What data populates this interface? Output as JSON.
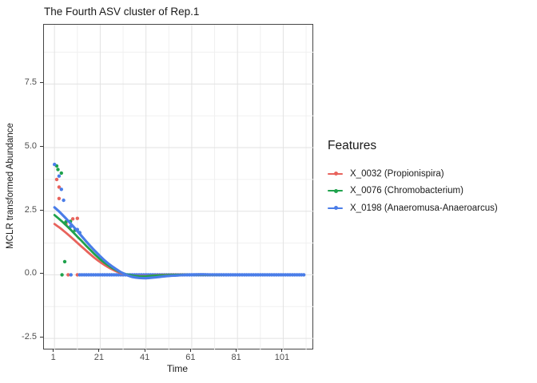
{
  "chart_data": {
    "type": "scatter+smooth",
    "title": "The Fourth ASV cluster of Rep.1",
    "xlabel": "Time",
    "ylabel": "MCLR transformed Abundance",
    "x_domain": [
      -3.6,
      114.3
    ],
    "y_domain": [
      -2.95,
      9.83
    ],
    "x_ticks": [
      {
        "v": 1,
        "label": "1"
      },
      {
        "v": 21,
        "label": "21"
      },
      {
        "v": 41,
        "label": "41"
      },
      {
        "v": 61,
        "label": "61"
      },
      {
        "v": 81,
        "label": "81"
      },
      {
        "v": 101,
        "label": "101"
      }
    ],
    "x_minor": [
      11,
      31,
      51,
      71,
      91,
      111
    ],
    "y_ticks": [
      {
        "v": 7.5,
        "label": "7.5"
      },
      {
        "v": 5.0,
        "label": "5.0"
      },
      {
        "v": 2.5,
        "label": "2.5"
      },
      {
        "v": 0.0,
        "label": "0.0"
      },
      {
        "v": -2.5,
        "label": "-2.5"
      }
    ],
    "y_minor": [
      8.75,
      6.25,
      3.75,
      1.25,
      -1.25
    ],
    "grid": {
      "major_color": "#E2E2E2",
      "minor_color": "#F0F0F0",
      "panel_border": "#454545",
      "panel_bg": "#FFFFFF"
    },
    "legend": {
      "title": "Features",
      "position": "right"
    },
    "point_radius": 2.2,
    "series": [
      {
        "label": "X_0032 (Propionispira)",
        "color": "#E8635C",
        "line_width": 2.8,
        "points": [
          [
            2,
            3.75
          ],
          [
            3,
            3.45
          ],
          [
            3,
            3.0
          ],
          [
            6,
            2.0
          ],
          [
            9,
            2.2
          ],
          [
            11,
            2.22
          ],
          [
            7,
            0
          ],
          [
            11,
            0
          ]
        ],
        "curve": [
          [
            1,
            2.0
          ],
          [
            3,
            1.87
          ],
          [
            5,
            1.73
          ],
          [
            7,
            1.58
          ],
          [
            9,
            1.42
          ],
          [
            11,
            1.26
          ],
          [
            13,
            1.1
          ],
          [
            15,
            0.94
          ],
          [
            17,
            0.78
          ],
          [
            19,
            0.63
          ],
          [
            21,
            0.5
          ],
          [
            23,
            0.38
          ],
          [
            25,
            0.27
          ],
          [
            27,
            0.18
          ],
          [
            29,
            0.1
          ],
          [
            31,
            0.04
          ],
          [
            33,
            0.0
          ],
          [
            35,
            -0.03
          ],
          [
            38,
            -0.05
          ],
          [
            41,
            -0.05
          ],
          [
            44,
            -0.03
          ],
          [
            47,
            -0.01
          ],
          [
            50,
            0
          ],
          [
            55,
            0.01
          ],
          [
            60,
            0.01
          ],
          [
            70,
            0
          ],
          [
            80,
            0
          ],
          [
            90,
            0
          ],
          [
            100,
            0
          ],
          [
            110,
            0
          ]
        ]
      },
      {
        "label": "X_0076 (Chromobacterium)",
        "color": "#1FA24C",
        "line_width": 2.8,
        "points": [
          [
            2,
            4.28
          ],
          [
            2.5,
            4.14
          ],
          [
            4,
            4.0
          ],
          [
            6,
            2.08
          ],
          [
            8,
            2.1
          ],
          [
            10,
            1.75
          ],
          [
            12,
            1.65
          ],
          [
            5.5,
            0.52
          ],
          [
            4.3,
            0
          ]
        ],
        "curve": [
          [
            1,
            2.35
          ],
          [
            3,
            2.2
          ],
          [
            5,
            2.04
          ],
          [
            7,
            1.87
          ],
          [
            9,
            1.69
          ],
          [
            11,
            1.5
          ],
          [
            13,
            1.32
          ],
          [
            15,
            1.13
          ],
          [
            17,
            0.95
          ],
          [
            19,
            0.77
          ],
          [
            21,
            0.61
          ],
          [
            23,
            0.47
          ],
          [
            25,
            0.34
          ],
          [
            27,
            0.23
          ],
          [
            29,
            0.14
          ],
          [
            31,
            0.06
          ],
          [
            33,
            0.01
          ],
          [
            35,
            -0.03
          ],
          [
            38,
            -0.06
          ],
          [
            41,
            -0.06
          ],
          [
            44,
            -0.04
          ],
          [
            47,
            -0.02
          ],
          [
            50,
            -0.01
          ],
          [
            55,
            0
          ],
          [
            60,
            0.01
          ],
          [
            70,
            0
          ],
          [
            80,
            0
          ],
          [
            90,
            0
          ],
          [
            100,
            0
          ],
          [
            110,
            0
          ]
        ]
      },
      {
        "label": "X_0198 (Anaeromusa-Anaeroarcus)",
        "color": "#4A7DE8",
        "line_width": 3.2,
        "points": [
          [
            1,
            4.34
          ],
          [
            3,
            3.88
          ],
          [
            4,
            3.36
          ],
          [
            5,
            2.93
          ],
          [
            8,
            1.9
          ],
          [
            11,
            1.78
          ],
          [
            12,
            1.66
          ],
          [
            8.2,
            0
          ]
        ],
        "zero_run": {
          "from": 12,
          "to": 110,
          "step": 1,
          "y": 0
        },
        "curve": [
          [
            1,
            2.65
          ],
          [
            3,
            2.49
          ],
          [
            5,
            2.31
          ],
          [
            7,
            2.12
          ],
          [
            9,
            1.92
          ],
          [
            11,
            1.72
          ],
          [
            13,
            1.51
          ],
          [
            15,
            1.3
          ],
          [
            17,
            1.1
          ],
          [
            19,
            0.91
          ],
          [
            21,
            0.73
          ],
          [
            23,
            0.56
          ],
          [
            25,
            0.41
          ],
          [
            27,
            0.28
          ],
          [
            29,
            0.16
          ],
          [
            31,
            0.06
          ],
          [
            33,
            -0.02
          ],
          [
            35,
            -0.08
          ],
          [
            38,
            -0.12
          ],
          [
            41,
            -0.13
          ],
          [
            44,
            -0.11
          ],
          [
            47,
            -0.08
          ],
          [
            50,
            -0.05
          ],
          [
            55,
            -0.02
          ],
          [
            60,
            0.01
          ],
          [
            65,
            0.02
          ],
          [
            70,
            0.01
          ],
          [
            80,
            0
          ],
          [
            90,
            0
          ],
          [
            100,
            0
          ],
          [
            110,
            0
          ]
        ]
      }
    ]
  }
}
